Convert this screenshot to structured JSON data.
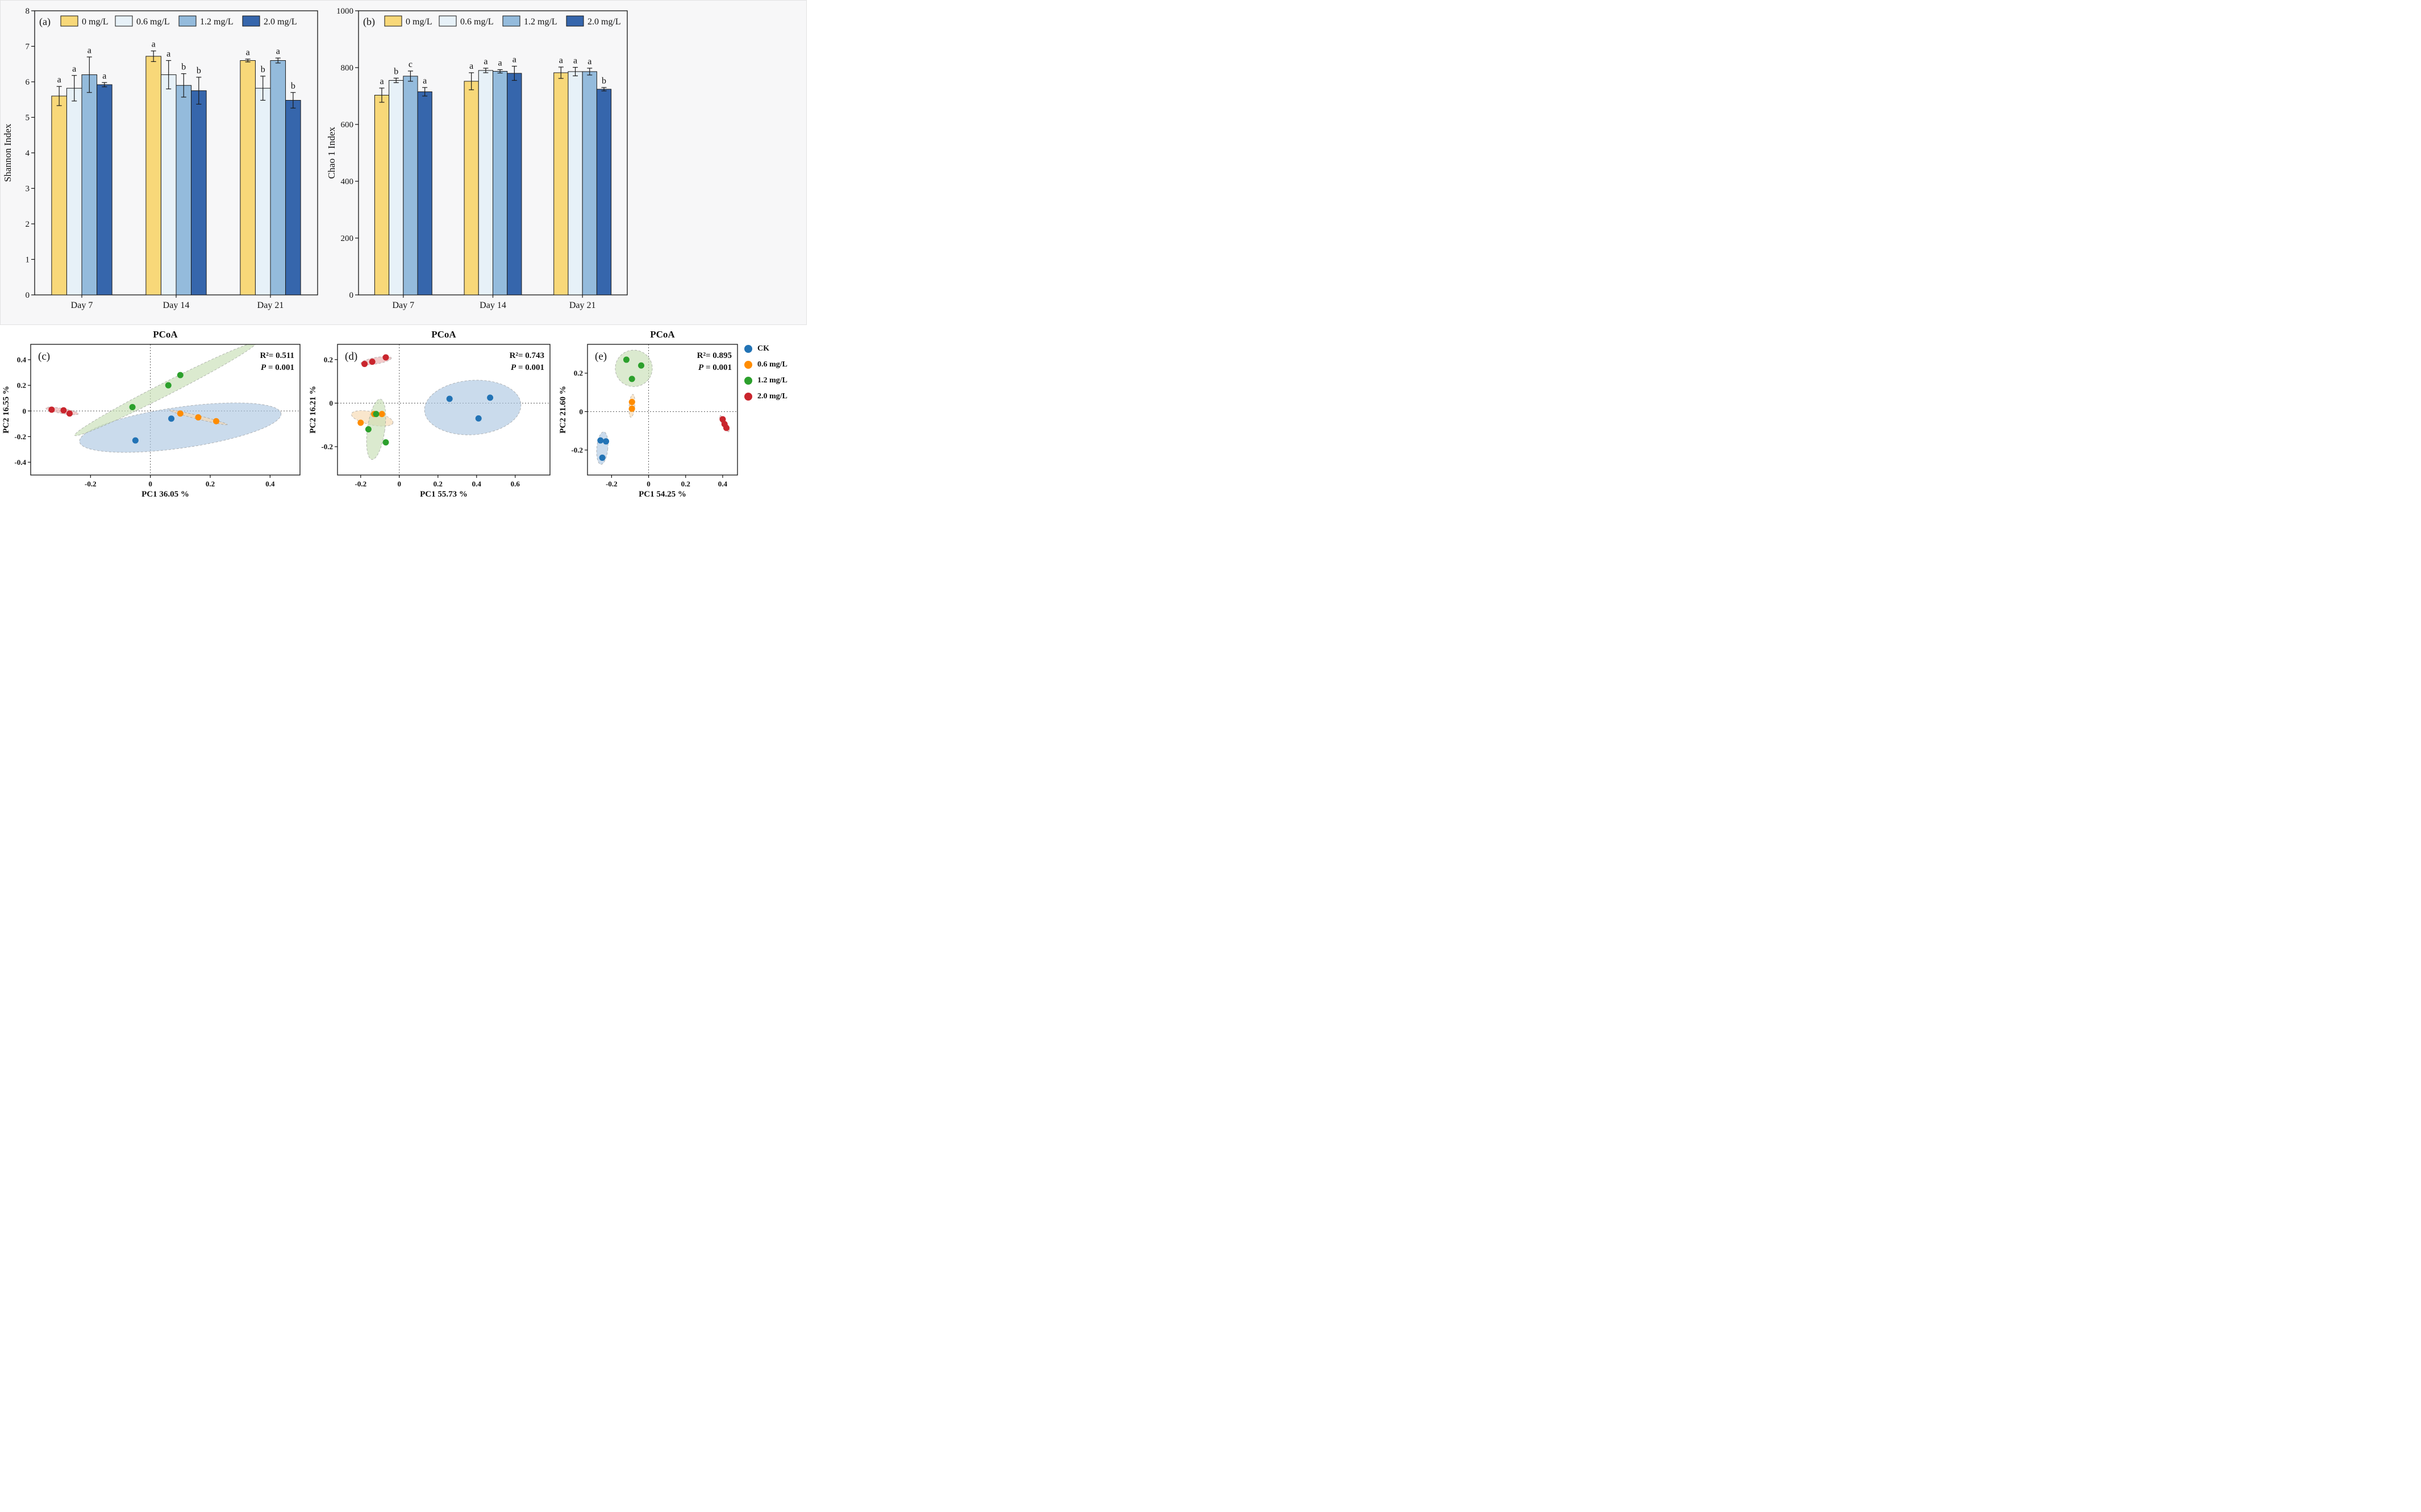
{
  "chart_data": [
    {
      "id": "panel-a",
      "type": "bar",
      "panel_label": "(a)",
      "ylabel": "Shannon Index",
      "ylim": [
        0,
        8
      ],
      "ytick_step": 1,
      "categories": [
        "Day 7",
        "Day 14",
        "Day 21"
      ],
      "series": [
        {
          "name": "0 mg/L",
          "color": "#F8D879",
          "values": [
            5.6,
            6.72,
            6.6
          ],
          "errors": [
            0.27,
            0.15,
            0.04
          ],
          "letters": [
            "a",
            "a",
            "a"
          ]
        },
        {
          "name": "0.6 mg/L",
          "color": "#E7F1F8",
          "values": [
            5.82,
            6.2,
            5.82
          ],
          "errors": [
            0.36,
            0.4,
            0.34
          ],
          "letters": [
            "a",
            "a",
            "b"
          ]
        },
        {
          "name": "1.2 mg/L",
          "color": "#94BBDC",
          "values": [
            6.2,
            5.9,
            6.6
          ],
          "errors": [
            0.5,
            0.33,
            0.07
          ],
          "letters": [
            "a",
            "b",
            "a"
          ]
        },
        {
          "name": "2.0 mg/L",
          "color": "#3666AC",
          "values": [
            5.92,
            5.75,
            5.48
          ],
          "errors": [
            0.06,
            0.38,
            0.22
          ],
          "letters": [
            "a",
            "b",
            "b"
          ]
        }
      ]
    },
    {
      "id": "panel-b",
      "type": "bar",
      "panel_label": "(b)",
      "ylabel": "Chao 1 Index",
      "ylim": [
        0,
        1000
      ],
      "ytick_step": 200,
      "categories": [
        "Day 7",
        "Day 14",
        "Day 21"
      ],
      "series": [
        {
          "name": "0 mg/L",
          "color": "#F8D879",
          "values": [
            703,
            752,
            782
          ],
          "errors": [
            25,
            30,
            20
          ],
          "letters": [
            "a",
            "a",
            "a"
          ]
        },
        {
          "name": "0.6 mg/L",
          "color": "#E7F1F8",
          "values": [
            755,
            790,
            786
          ],
          "errors": [
            8,
            8,
            15
          ],
          "letters": [
            "b",
            "a",
            "a"
          ]
        },
        {
          "name": "1.2 mg/L",
          "color": "#94BBDC",
          "values": [
            770,
            787,
            786
          ],
          "errors": [
            18,
            6,
            12
          ],
          "letters": [
            "c",
            "a",
            "a"
          ]
        },
        {
          "name": "2.0 mg/L",
          "color": "#3666AC",
          "values": [
            715,
            780,
            724
          ],
          "errors": [
            15,
            25,
            6
          ],
          "letters": [
            "a",
            "a",
            "b"
          ]
        }
      ]
    },
    {
      "id": "panel-c",
      "type": "scatter",
      "panel_label": "(c)",
      "title": "PCoA",
      "xlabel": "PC1 36.05 %",
      "ylabel": "PC2 16.55 %",
      "r2_label": "R²= 0.511",
      "p_label": "P",
      "p_value": " = 0.001",
      "xlim": [
        -0.4,
        0.5
      ],
      "ylim": [
        -0.5,
        0.52
      ],
      "xticks": [
        -0.2,
        0,
        0.2,
        0.4
      ],
      "yticks": [
        -0.4,
        -0.2,
        0,
        0.2,
        0.4
      ],
      "groups": [
        {
          "name": "CK",
          "color": "#2273B5",
          "fill": "#AEC7E2",
          "points": [
            [
              0.07,
              -0.06
            ],
            [
              -0.05,
              -0.23
            ]
          ],
          "ellipse": {
            "cx": 0.1,
            "cy": -0.13,
            "rx": 0.34,
            "ry": 0.16,
            "angle": -8
          }
        },
        {
          "name": "0.6 mg/L",
          "color": "#FF8C00",
          "fill": "#F6D8B0",
          "points": [
            [
              0.1,
              -0.02
            ],
            [
              0.16,
              -0.05
            ],
            [
              0.22,
              -0.08
            ]
          ],
          "ellipse": {
            "cx": 0.16,
            "cy": -0.05,
            "rx": 0.1,
            "ry": 0.014,
            "angle": 14
          }
        },
        {
          "name": "1.2 mg/L",
          "color": "#2CA02C",
          "fill": "#C7DFB5",
          "points": [
            [
              -0.06,
              0.03
            ],
            [
              0.06,
              0.2
            ],
            [
              0.1,
              0.28
            ]
          ],
          "ellipse": {
            "cx": 0.05,
            "cy": 0.17,
            "rx": 0.34,
            "ry": 0.05,
            "angle": -27
          }
        },
        {
          "name": "2.0 mg/L",
          "color": "#C9252D",
          "fill": "#E9AFAF",
          "points": [
            [
              -0.33,
              0.01
            ],
            [
              -0.29,
              0.005
            ],
            [
              -0.27,
              -0.02
            ]
          ],
          "ellipse": {
            "cx": -0.295,
            "cy": 0.0,
            "rx": 0.055,
            "ry": 0.02,
            "angle": 10
          }
        }
      ]
    },
    {
      "id": "panel-d",
      "type": "scatter",
      "panel_label": "(d)",
      "title": "PCoA",
      "xlabel": "PC1 55.73 %",
      "ylabel": "PC2 16.21 %",
      "r2_label": "R²= 0.743",
      "p_label": "P",
      "p_value": " = 0.001",
      "xlim": [
        -0.32,
        0.78
      ],
      "ylim": [
        -0.33,
        0.27
      ],
      "xticks": [
        -0.2,
        0,
        0.2,
        0.4,
        0.6
      ],
      "yticks": [
        -0.2,
        0,
        0.2
      ],
      "groups": [
        {
          "name": "CK",
          "color": "#2273B5",
          "fill": "#AEC7E2",
          "points": [
            [
              0.26,
              0.02
            ],
            [
              0.47,
              0.025
            ],
            [
              0.41,
              -0.07
            ]
          ],
          "ellipse": {
            "cx": 0.38,
            "cy": -0.02,
            "rx": 0.25,
            "ry": 0.125,
            "angle": -4
          }
        },
        {
          "name": "0.6 mg/L",
          "color": "#FF8C00",
          "fill": "#F6D8B0",
          "points": [
            [
              -0.2,
              -0.09
            ],
            [
              -0.13,
              -0.05
            ],
            [
              -0.09,
              -0.05
            ]
          ],
          "ellipse": {
            "cx": -0.14,
            "cy": -0.07,
            "rx": 0.11,
            "ry": 0.03,
            "angle": 12
          }
        },
        {
          "name": "1.2 mg/L",
          "color": "#2CA02C",
          "fill": "#C7DFB5",
          "points": [
            [
              -0.16,
              -0.12
            ],
            [
              -0.12,
              -0.05
            ],
            [
              -0.07,
              -0.18
            ]
          ],
          "ellipse": {
            "cx": -0.12,
            "cy": -0.12,
            "rx": 0.045,
            "ry": 0.14,
            "angle": 8
          }
        },
        {
          "name": "2.0 mg/L",
          "color": "#C9252D",
          "fill": "#E9AFAF",
          "points": [
            [
              -0.18,
              0.18
            ],
            [
              -0.14,
              0.19
            ],
            [
              -0.07,
              0.21
            ]
          ],
          "ellipse": {
            "cx": -0.12,
            "cy": 0.195,
            "rx": 0.08,
            "ry": 0.015,
            "angle": -10
          }
        }
      ]
    },
    {
      "id": "panel-e",
      "type": "scatter",
      "panel_label": "(e)",
      "title": "PCoA",
      "xlabel": "PC1 54.25 %",
      "ylabel": "PC2 21.60 %",
      "r2_label": "R²= 0.895",
      "p_label": "P",
      "p_value": " = 0.001",
      "xlim": [
        -0.33,
        0.48
      ],
      "ylim": [
        -0.33,
        0.35
      ],
      "xticks": [
        -0.2,
        0,
        0.2,
        0.4
      ],
      "yticks": [
        -0.2,
        0,
        0.2
      ],
      "groups": [
        {
          "name": "CK",
          "color": "#2273B5",
          "fill": "#AEC7E2",
          "points": [
            [
              -0.26,
              -0.15
            ],
            [
              -0.23,
              -0.155
            ],
            [
              -0.25,
              -0.24
            ]
          ],
          "ellipse": {
            "cx": -0.25,
            "cy": -0.19,
            "rx": 0.03,
            "ry": 0.085,
            "angle": 5
          }
        },
        {
          "name": "0.6 mg/L",
          "color": "#FF8C00",
          "fill": "#F6D8B0",
          "points": [
            [
              -0.09,
              0.05
            ],
            [
              -0.09,
              0.015
            ]
          ],
          "ellipse": {
            "cx": -0.09,
            "cy": 0.03,
            "rx": 0.015,
            "ry": 0.06,
            "angle": 5
          }
        },
        {
          "name": "1.2 mg/L",
          "color": "#2CA02C",
          "fill": "#C7DFB5",
          "points": [
            [
              -0.12,
              0.27
            ],
            [
              -0.04,
              0.24
            ],
            [
              -0.09,
              0.17
            ]
          ],
          "ellipse": {
            "cx": -0.08,
            "cy": 0.225,
            "rx": 0.1,
            "ry": 0.095,
            "angle": 0
          }
        },
        {
          "name": "2.0 mg/L",
          "color": "#C9252D",
          "fill": "#E9AFAF",
          "points": [
            [
              0.4,
              -0.04
            ],
            [
              0.41,
              -0.065
            ],
            [
              0.42,
              -0.085
            ]
          ],
          "ellipse": {
            "cx": 0.41,
            "cy": -0.063,
            "rx": 0.05,
            "ry": 0.012,
            "angle": 60
          }
        }
      ]
    }
  ],
  "legend": {
    "items": [
      {
        "label": "CK",
        "color": "#2273B5"
      },
      {
        "label": "0.6 mg/L",
        "color": "#FF8C00"
      },
      {
        "label": "1.2 mg/L",
        "color": "#2CA02C"
      },
      {
        "label": "2.0 mg/L",
        "color": "#C9252D"
      }
    ]
  }
}
